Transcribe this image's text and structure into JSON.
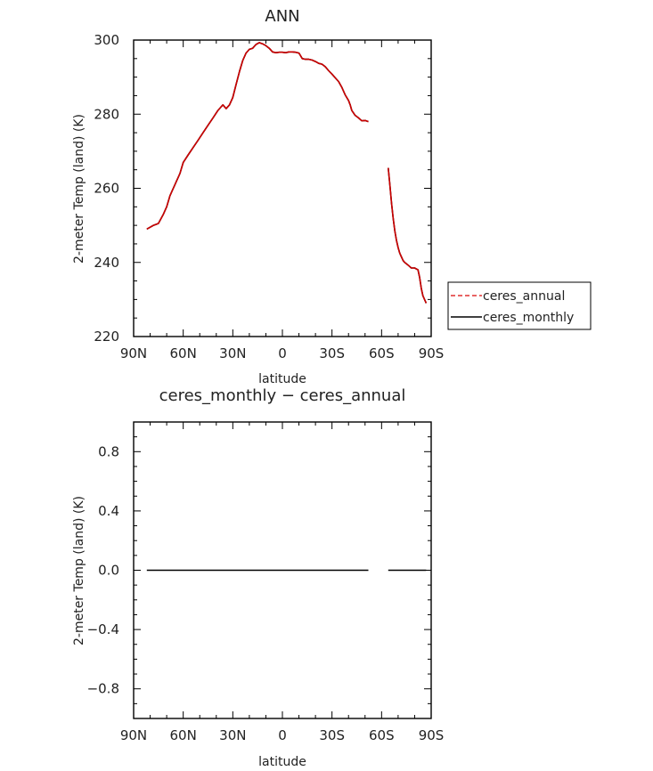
{
  "chart_data": [
    {
      "type": "line",
      "title": "ANN",
      "xlabel": "latitude",
      "ylabel": "2-meter Temp (land) (K)",
      "xlim": [
        90,
        -90
      ],
      "ylim": [
        220,
        300
      ],
      "x_ticks": [
        90,
        60,
        30,
        0,
        -30,
        -60,
        -90
      ],
      "x_tick_labels": [
        "90N",
        "60N",
        "30N",
        "0",
        "30S",
        "60S",
        "90S"
      ],
      "y_ticks": [
        220,
        240,
        260,
        280,
        300
      ],
      "y_tick_labels": [
        "220",
        "240",
        "260",
        "280",
        "300"
      ],
      "legend": {
        "placement": "right",
        "entries": [
          {
            "name": "ceres_annual",
            "color": "#e03030",
            "dash": "dashed"
          },
          {
            "name": "ceres_monthly",
            "color": "#000000",
            "dash": "solid"
          }
        ]
      },
      "series": [
        {
          "name": "ceres_annual",
          "color": "#cc0000",
          "segments": [
            [
              [
                82,
                249
              ],
              [
                78,
                250
              ],
              [
                75,
                250.5
              ],
              [
                72,
                253
              ],
              [
                70,
                255
              ],
              [
                68,
                258
              ],
              [
                65,
                261
              ],
              [
                62,
                264
              ],
              [
                60,
                267
              ],
              [
                57,
                269
              ],
              [
                54,
                271
              ],
              [
                51,
                273
              ],
              [
                48,
                275
              ],
              [
                45,
                277
              ],
              [
                42,
                279
              ],
              [
                39,
                281
              ],
              [
                37,
                282
              ],
              [
                36,
                282.5
              ],
              [
                34,
                281.5
              ],
              [
                32,
                282.5
              ],
              [
                30,
                284.5
              ],
              [
                28,
                288
              ],
              [
                26,
                291.5
              ],
              [
                24,
                294.5
              ],
              [
                22,
                296.5
              ],
              [
                20,
                297.5
              ],
              [
                18,
                297.8
              ],
              [
                16,
                298.8
              ],
              [
                14,
                299.3
              ],
              [
                12,
                299
              ],
              [
                10,
                298.5
              ],
              [
                8,
                297.8
              ],
              [
                6,
                296.8
              ],
              [
                4,
                296.6
              ],
              [
                2,
                296.7
              ],
              [
                0,
                296.7
              ],
              [
                -2,
                296.6
              ],
              [
                -4,
                296.8
              ],
              [
                -6,
                296.8
              ],
              [
                -8,
                296.7
              ],
              [
                -10,
                296.5
              ],
              [
                -12,
                295
              ],
              [
                -14,
                294.8
              ],
              [
                -16,
                294.8
              ],
              [
                -18,
                294.6
              ],
              [
                -20,
                294.2
              ],
              [
                -22,
                293.7
              ],
              [
                -24,
                293.5
              ],
              [
                -26,
                292.8
              ],
              [
                -28,
                291.7
              ],
              [
                -30,
                290.8
              ],
              [
                -32,
                289.8
              ],
              [
                -34,
                288.8
              ],
              [
                -36,
                287.2
              ],
              [
                -38,
                285.2
              ],
              [
                -40,
                283.7
              ],
              [
                -41,
                282.5
              ],
              [
                -42,
                281
              ],
              [
                -44,
                279.7
              ],
              [
                -46,
                279
              ],
              [
                -48,
                278.2
              ],
              [
                -50,
                278.3
              ],
              [
                -52,
                278
              ]
            ],
            [
              [
                -64,
                265.5
              ],
              [
                -65,
                261
              ],
              [
                -66,
                256
              ],
              [
                -67,
                252
              ],
              [
                -68,
                248.5
              ],
              [
                -69,
                246
              ],
              [
                -70,
                244
              ],
              [
                -71,
                242.5
              ],
              [
                -72,
                241.5
              ],
              [
                -73,
                240.5
              ],
              [
                -74,
                240
              ],
              [
                -76,
                239.3
              ],
              [
                -78,
                238.5
              ],
              [
                -80,
                238.5
              ],
              [
                -82,
                238
              ],
              [
                -83,
                236
              ],
              [
                -84,
                233
              ],
              [
                -85,
                231
              ],
              [
                -86,
                230
              ],
              [
                -87,
                229
              ]
            ]
          ]
        },
        {
          "name": "ceres_monthly",
          "color": "#000000",
          "same_as": "ceres_annual"
        }
      ]
    },
    {
      "type": "line",
      "title": "ceres_monthly − ceres_annual",
      "xlabel": "latitude",
      "ylabel": "2-meter Temp (land) (K)",
      "xlim": [
        90,
        -90
      ],
      "ylim": [
        -1,
        1
      ],
      "x_ticks": [
        90,
        60,
        30,
        0,
        -30,
        -60,
        -90
      ],
      "x_tick_labels": [
        "90N",
        "60N",
        "30N",
        "0",
        "30S",
        "60S",
        "90S"
      ],
      "y_ticks": [
        -0.8,
        -0.4,
        0.0,
        0.4,
        0.8
      ],
      "y_tick_labels": [
        "−0.8",
        "−0.4",
        "0.0",
        "0.4",
        "0.8"
      ],
      "series": [
        {
          "color": "#000000",
          "segments": [
            [
              [
                82,
                0
              ],
              [
                -52,
                0
              ]
            ],
            [
              [
                -64,
                0
              ],
              [
                -87,
                0
              ]
            ]
          ]
        }
      ]
    }
  ]
}
